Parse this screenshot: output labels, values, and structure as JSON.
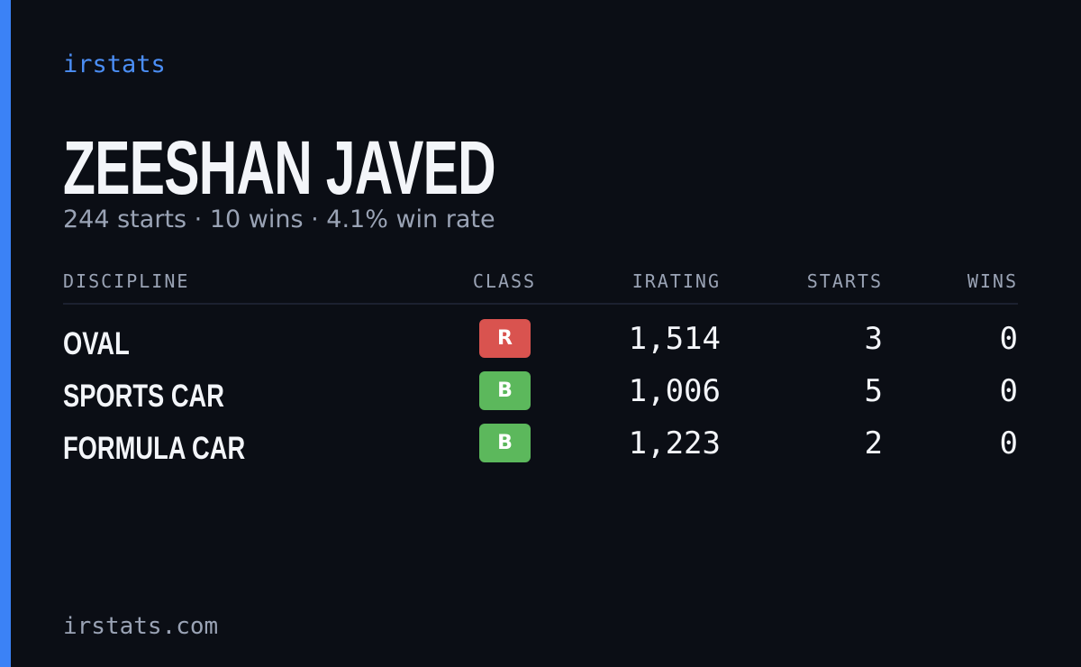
{
  "brand": "irstats",
  "header": {
    "name": "ZEESHAN JAVED",
    "summary": "244 starts · 10 wins · 4.1% win rate"
  },
  "table": {
    "columns": [
      "DISCIPLINE",
      "CLASS",
      "IRATING",
      "STARTS",
      "WINS"
    ],
    "rows": [
      {
        "discipline": "OVAL",
        "class": "R",
        "class_color": "#d9534f",
        "irating": "1,514",
        "starts": "3",
        "wins": "0"
      },
      {
        "discipline": "SPORTS CAR",
        "class": "B",
        "class_color": "#5cb85c",
        "irating": "1,006",
        "starts": "5",
        "wins": "0"
      },
      {
        "discipline": "FORMULA CAR",
        "class": "B",
        "class_color": "#5cb85c",
        "irating": "1,223",
        "starts": "2",
        "wins": "0"
      }
    ]
  },
  "footer": {
    "url": "irstats.com"
  }
}
